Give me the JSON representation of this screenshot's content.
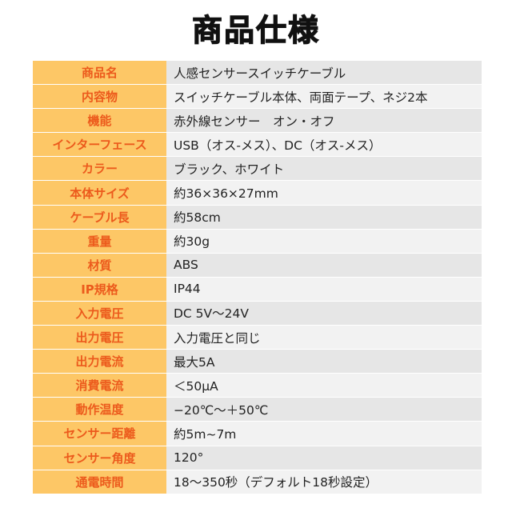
{
  "title": "商品仕様",
  "colors": {
    "label_bg": "#fdc766",
    "label_text": "#ec5a1c",
    "value_bg_a": "#e6e6e6",
    "value_bg_b": "#f2f2f2"
  },
  "specs": [
    {
      "label": "商品名",
      "value": "人感センサースイッチケーブル"
    },
    {
      "label": "内容物",
      "value": "スイッチケーブル本体、両面テープ、ネジ2本"
    },
    {
      "label": "機能",
      "value": "赤外線センサー　オン・オフ"
    },
    {
      "label": "インターフェース",
      "value": "USB（オス-メス）、DC（オス-メス）"
    },
    {
      "label": "カラー",
      "value": "ブラック、ホワイト"
    },
    {
      "label": "本体サイズ",
      "value": "約36×36×27mm"
    },
    {
      "label": "ケーブル長",
      "value": "約58cm"
    },
    {
      "label": "重量",
      "value": "約30g"
    },
    {
      "label": "材質",
      "value": "ABS"
    },
    {
      "label": "IP規格",
      "value": "IP44"
    },
    {
      "label": "入力電圧",
      "value": "DC 5V～24V"
    },
    {
      "label": "出力電圧",
      "value": "入力電圧と同じ"
    },
    {
      "label": "出力電流",
      "value": "最大5A"
    },
    {
      "label": "消費電流",
      "value": "＜50μA"
    },
    {
      "label": "動作温度",
      "value": "−20℃～＋50℃"
    },
    {
      "label": "センサー距離",
      "value": "約5m~7m"
    },
    {
      "label": "センサー角度",
      "value": "120°"
    },
    {
      "label": "通電時間",
      "value": "18～350秒（デフォルト18秒設定）"
    }
  ]
}
